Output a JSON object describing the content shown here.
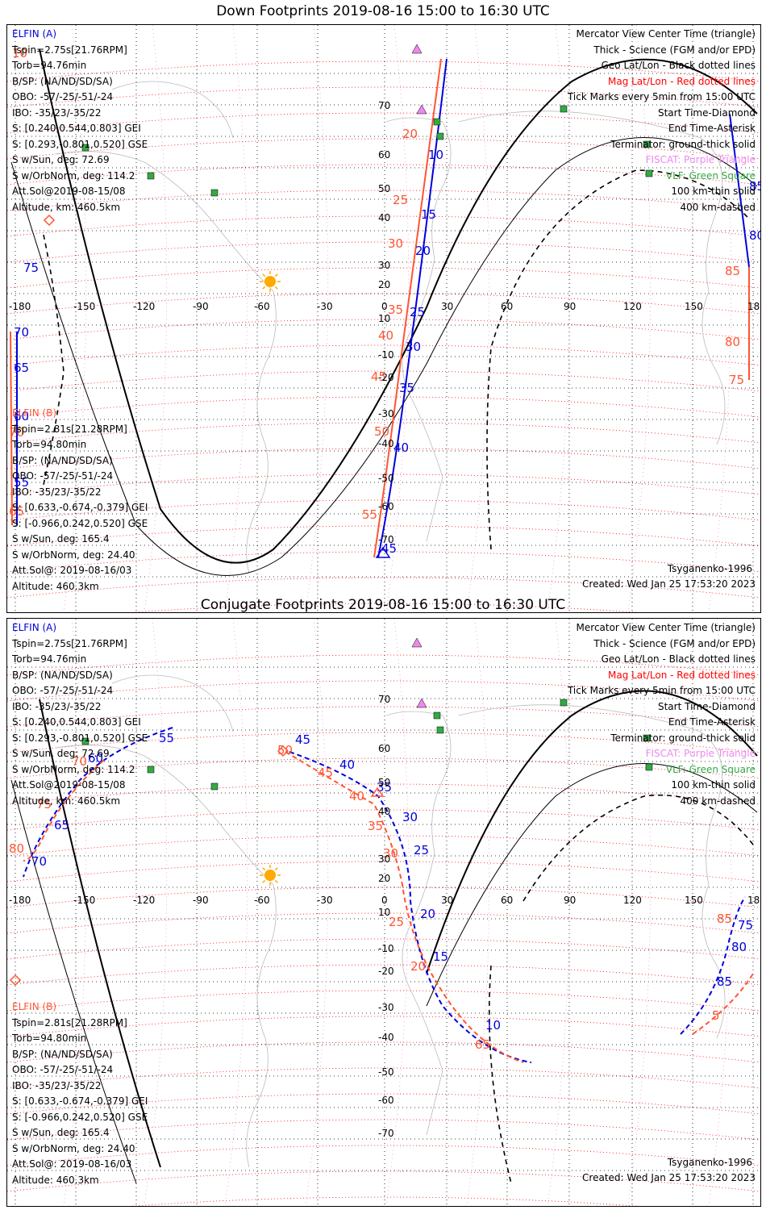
{
  "top_title": "Down Footprints 2019-08-16 15:00 to 16:30 UTC",
  "bottom_title": "Conjugate Footprints 2019-08-16 15:00 to 16:30 UTC",
  "elfin_a": {
    "name": "ELFIN (A)",
    "lines": [
      "Tspin=2.75s[21.76RPM]",
      "Torb=94.76min",
      "B/SP: (NA/ND/SD/SA)",
      "OBO: -57/-25/-51/-24",
      "IBO: -35/23/-35/22",
      "S: [0.240,0.544,0.803] GEI",
      "S: [0.293,-0.801,0.520] GSE",
      "S w/Sun, deg: 72.69",
      "S w/OrbNorm, deg: 114.2",
      "Att.Sol@2019-08-15/08",
      "Altitude, km: 460.5km"
    ]
  },
  "elfin_b": {
    "name": "ELFIN (B)",
    "lines": [
      "Tspin=2.81s[21.28RPM]",
      "Torb=94.80min",
      "B/SP: (NA/ND/SD/SA)",
      "OBO: -57/-25/-51/-24",
      "IBO: -35/23/-35/22",
      "S: [0.633,-0.674,-0.379] GEI",
      "S: [-0.966,0.242,0.520] GSE",
      "S w/Sun, deg: 165.4",
      "S w/OrbNorm, deg: 24.40",
      "Att.Sol@: 2019-08-16/03",
      "Altitude: 460.3km"
    ]
  },
  "legend": [
    {
      "text": "Mercator View Center Time (triangle)",
      "color": "#000000"
    },
    {
      "text": "Thick - Science (FGM and/or EPD)",
      "color": "#000000"
    },
    {
      "text": "Geo Lat/Lon - Black dotted lines",
      "color": "#000000"
    },
    {
      "text": "Mag Lat/Lon - Red dotted lines",
      "color": "#ff0000"
    },
    {
      "text": "Tick Marks every 5min from 15:00 UTC",
      "color": "#000000"
    },
    {
      "text": "Start Time-Diamond",
      "color": "#000000"
    },
    {
      "text": "End Time-Asterisk",
      "color": "#000000"
    },
    {
      "text": "Terminator: ground-thick solid",
      "color": "#000000"
    },
    {
      "text": "FISCAT: Purple Triangle",
      "color": "#ee88ee"
    },
    {
      "text": "VLF: Green Square",
      "color": "#33aa44"
    },
    {
      "text": "100 km-thin solid",
      "color": "#000000"
    },
    {
      "text": "400 km-dashed",
      "color": "#000000"
    }
  ],
  "model": "Tsyganenko-1996",
  "created": "Created: Wed Jan 25 17:53:20 2023",
  "lon_labels": [
    "-180",
    "-150",
    "-120",
    "-90",
    "-60",
    "-30",
    "0",
    "30",
    "60",
    "90",
    "120",
    "150",
    "180"
  ],
  "lat_labels": [
    "70",
    "60",
    "50",
    "40",
    "30",
    "20",
    "10",
    "-10",
    "-20",
    "-30",
    "-40",
    "-50",
    "-60",
    "-70"
  ],
  "colors": {
    "elfin_a": "#0000dd",
    "elfin_b": "#ff5533",
    "mag_grid": "#ff0000",
    "geo_grid": "#000000",
    "sun": "#ffaa00",
    "fiscat": "#ee88ee",
    "vlf": "#33aa44"
  },
  "down": {
    "a_ticks": [
      "10",
      "15",
      "20",
      "25",
      "30",
      "35",
      "40",
      "45",
      "85",
      "80",
      "75",
      "70",
      "65",
      "60",
      "55"
    ],
    "b_ticks": [
      "10",
      "20",
      "25",
      "30",
      "35",
      "40",
      "45",
      "50",
      "55",
      "85",
      "80",
      "75",
      "70",
      "65"
    ]
  },
  "conjugate": {
    "a_ticks": [
      "35",
      "40",
      "45",
      "25",
      "30",
      "20",
      "15",
      "10",
      "55",
      "60",
      "65",
      "70",
      "75",
      "80",
      "85"
    ],
    "b_ticks": [
      "50",
      "45",
      "40",
      "35",
      "30",
      "25",
      "20",
      "65",
      "70",
      "75",
      "80",
      "85",
      "5"
    ]
  }
}
